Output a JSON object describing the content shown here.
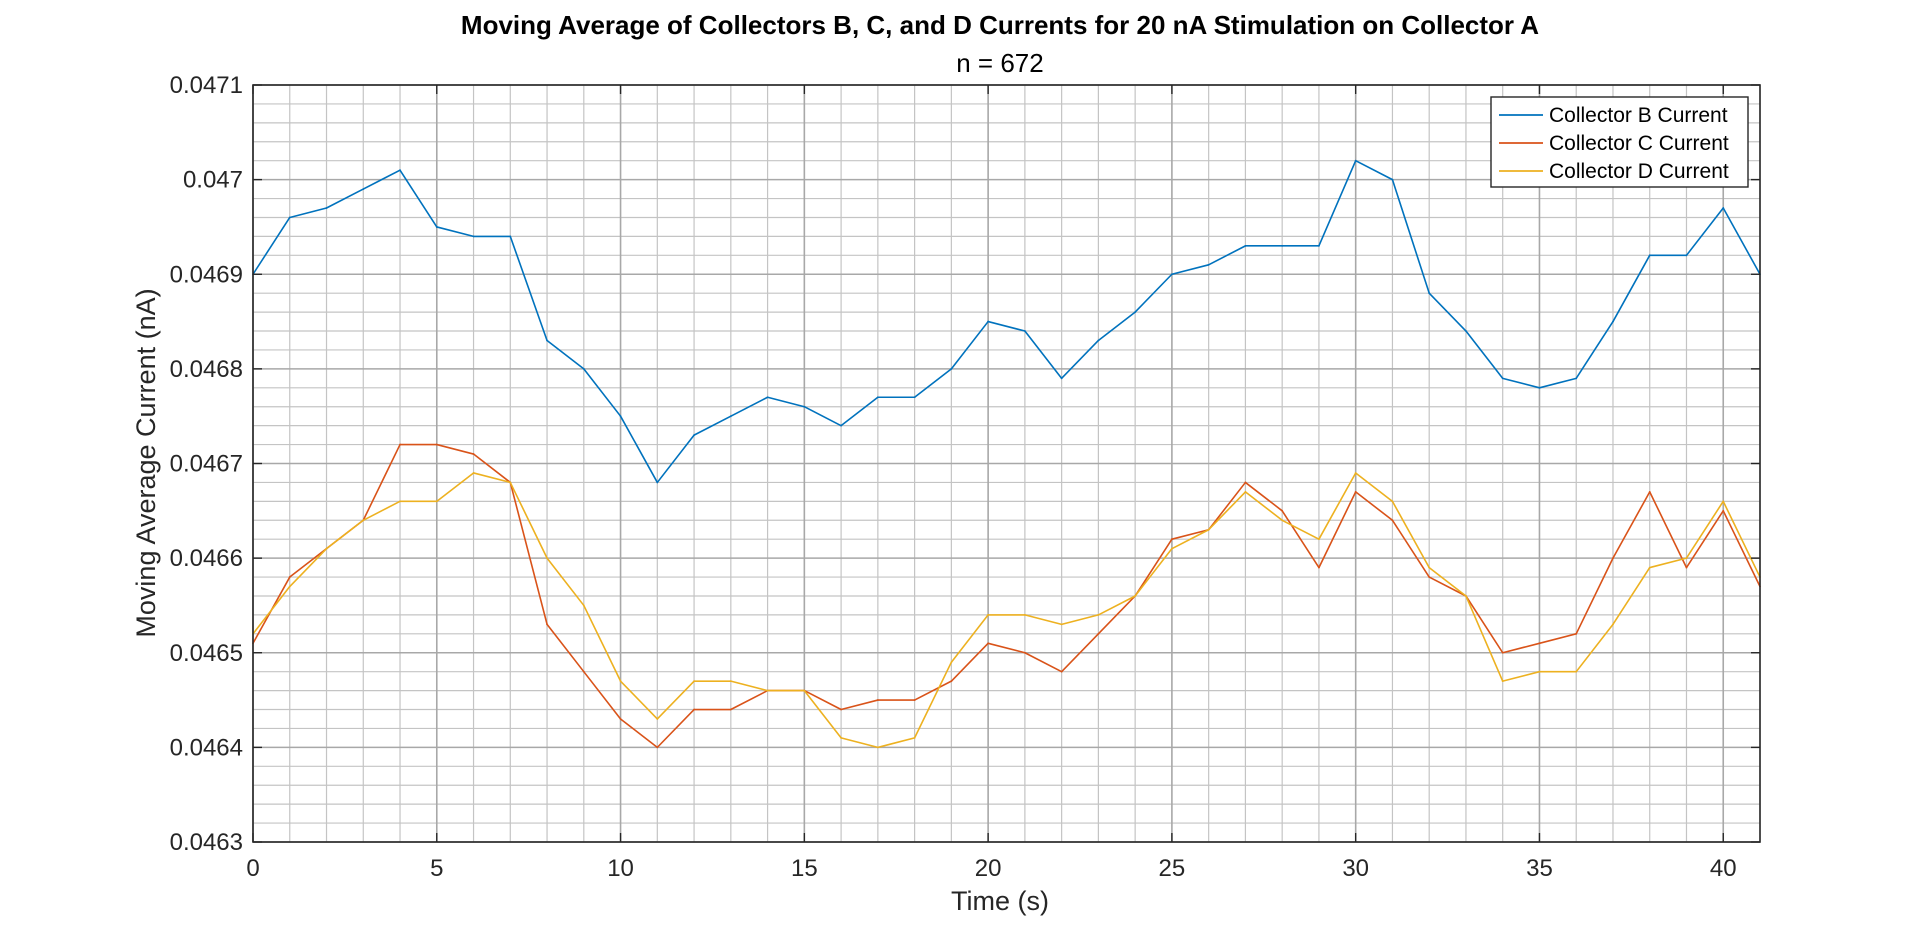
{
  "chart_data": {
    "type": "line",
    "title": "Moving Average of Collectors B, C, and D Currents for 20 nA Stimulation on Collector A",
    "subtitle": "n = 672",
    "xlabel": "Time (s)",
    "ylabel": "Moving Average Current (nA)",
    "xlim": [
      0,
      41
    ],
    "ylim": [
      0.0463,
      0.0471
    ],
    "x_ticks": [
      0,
      5,
      10,
      15,
      20,
      25,
      30,
      35,
      40
    ],
    "x_tick_labels": [
      "0",
      "5",
      "10",
      "15",
      "20",
      "25",
      "30",
      "35",
      "40"
    ],
    "y_ticks": [
      0.0463,
      0.0464,
      0.0465,
      0.0466,
      0.0467,
      0.0468,
      0.0469,
      0.047,
      0.0471
    ],
    "y_tick_labels": [
      "0.0463",
      "0.0464",
      "0.0465",
      "0.0466",
      "0.0467",
      "0.0468",
      "0.0469",
      "0.047",
      "0.0471"
    ],
    "grid": "major and minor",
    "legend_position": "top-right",
    "x": [
      0,
      1,
      2,
      3,
      4,
      5,
      6,
      7,
      8,
      9,
      10,
      11,
      12,
      13,
      14,
      15,
      16,
      17,
      18,
      19,
      20,
      21,
      22,
      23,
      24,
      25,
      26,
      27,
      28,
      29,
      30,
      31,
      32,
      33,
      34,
      35,
      36,
      37,
      38,
      39,
      40,
      41
    ],
    "series": [
      {
        "name": "Collector B Current",
        "color": "#0072BD",
        "values": [
          0.0469,
          0.04696,
          0.04697,
          0.04699,
          0.04701,
          0.04695,
          0.04694,
          0.04694,
          0.04683,
          0.0468,
          0.04675,
          0.04668,
          0.04673,
          0.04675,
          0.04677,
          0.04676,
          0.04674,
          0.04677,
          0.04677,
          0.0468,
          0.04685,
          0.04684,
          0.04679,
          0.04683,
          0.04686,
          0.0469,
          0.04691,
          0.04693,
          0.04693,
          0.04693,
          0.04702,
          0.047,
          0.04688,
          0.04684,
          0.04679,
          0.04678,
          0.04679,
          0.04685,
          0.04692,
          0.04692,
          0.04697,
          0.0469
        ]
      },
      {
        "name": "Collector C Current",
        "color": "#D95319",
        "values": [
          0.04651,
          0.04658,
          0.04661,
          0.04664,
          0.04672,
          0.04672,
          0.04671,
          0.04668,
          0.04653,
          0.04648,
          0.04643,
          0.0464,
          0.04644,
          0.04644,
          0.04646,
          0.04646,
          0.04644,
          0.04645,
          0.04645,
          0.04647,
          0.04651,
          0.0465,
          0.04648,
          0.04652,
          0.04656,
          0.04662,
          0.04663,
          0.04668,
          0.04665,
          0.04659,
          0.04667,
          0.04664,
          0.04658,
          0.04656,
          0.0465,
          0.04651,
          0.04652,
          0.0466,
          0.04667,
          0.04659,
          0.04665,
          0.04657
        ]
      },
      {
        "name": "Collector D Current",
        "color": "#EDB120",
        "values": [
          0.04652,
          0.04657,
          0.04661,
          0.04664,
          0.04666,
          0.04666,
          0.04669,
          0.04668,
          0.0466,
          0.04655,
          0.04647,
          0.04643,
          0.04647,
          0.04647,
          0.04646,
          0.04646,
          0.04641,
          0.0464,
          0.04641,
          0.04649,
          0.04654,
          0.04654,
          0.04653,
          0.04654,
          0.04656,
          0.04661,
          0.04663,
          0.04667,
          0.04664,
          0.04662,
          0.04669,
          0.04666,
          0.04659,
          0.04656,
          0.04647,
          0.04648,
          0.04648,
          0.04653,
          0.04659,
          0.0466,
          0.04666,
          0.04658
        ]
      }
    ]
  }
}
